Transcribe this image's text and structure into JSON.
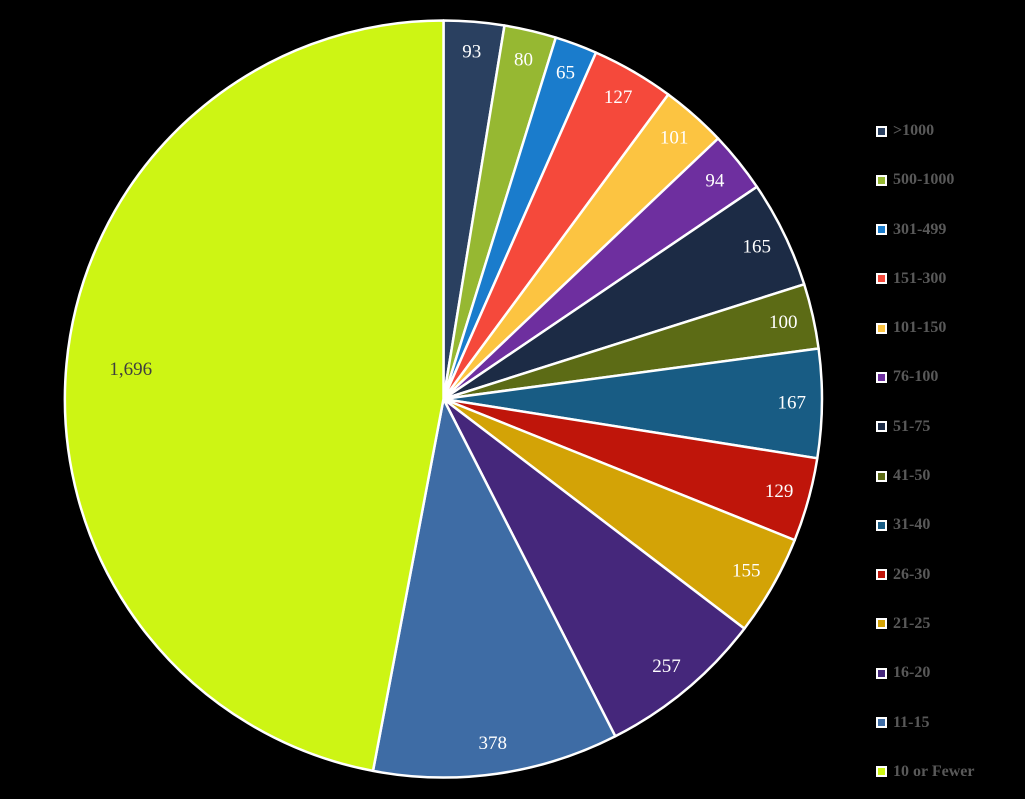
{
  "background_color": "#000000",
  "chart_data": {
    "type": "pie",
    "title": "",
    "start_angle_deg": 0,
    "direction": "clockwise",
    "total": 3607,
    "grid": false,
    "legend_position": "right",
    "legend_text_color": "#595959",
    "slice_border_color": "#FFFFFF",
    "data_labels": "values",
    "slices": [
      {
        "label": ">1000",
        "value": 93,
        "display_value": "93",
        "color": "#2A4060",
        "label_color": "#FFFFFF"
      },
      {
        "label": "500-1000",
        "value": 80,
        "display_value": "80",
        "color": "#96B832",
        "label_color": "#FFFFFF"
      },
      {
        "label": "301-499",
        "value": 65,
        "display_value": "65",
        "color": "#1A7CCC",
        "label_color": "#FFFFFF"
      },
      {
        "label": "151-300",
        "value": 127,
        "display_value": "127",
        "color": "#F5493B",
        "label_color": "#FFFFFF"
      },
      {
        "label": "101-150",
        "value": 101,
        "display_value": "101",
        "color": "#FCC441",
        "label_color": "#FFFFFF"
      },
      {
        "label": "76-100",
        "value": 94,
        "display_value": "94",
        "color": "#6E2F9F",
        "label_color": "#FFFFFF"
      },
      {
        "label": "51-75",
        "value": 165,
        "display_value": "165",
        "color": "#1C2B45",
        "label_color": "#FFFFFF"
      },
      {
        "label": "41-50",
        "value": 100,
        "display_value": "100",
        "color": "#5C6B15",
        "label_color": "#FFFFFF"
      },
      {
        "label": "31-40",
        "value": 167,
        "display_value": "167",
        "color": "#185C84",
        "label_color": "#FFFFFF"
      },
      {
        "label": "26-30",
        "value": 129,
        "display_value": "129",
        "color": "#BF150A",
        "label_color": "#FFFFFF"
      },
      {
        "label": "21-25",
        "value": 155,
        "display_value": "155",
        "color": "#D3A306",
        "label_color": "#FFFFFF"
      },
      {
        "label": "16-20",
        "value": 257,
        "display_value": "257",
        "color": "#45277B",
        "label_color": "#FFFFFF"
      },
      {
        "label": "11-15",
        "value": 378,
        "display_value": "378",
        "color": "#3E6CA5",
        "label_color": "#FFFFFF"
      },
      {
        "label": "10 or Fewer",
        "value": 1696,
        "display_value": "1,696",
        "color": "#CDF514",
        "label_color": "#3F3F3F"
      }
    ]
  }
}
